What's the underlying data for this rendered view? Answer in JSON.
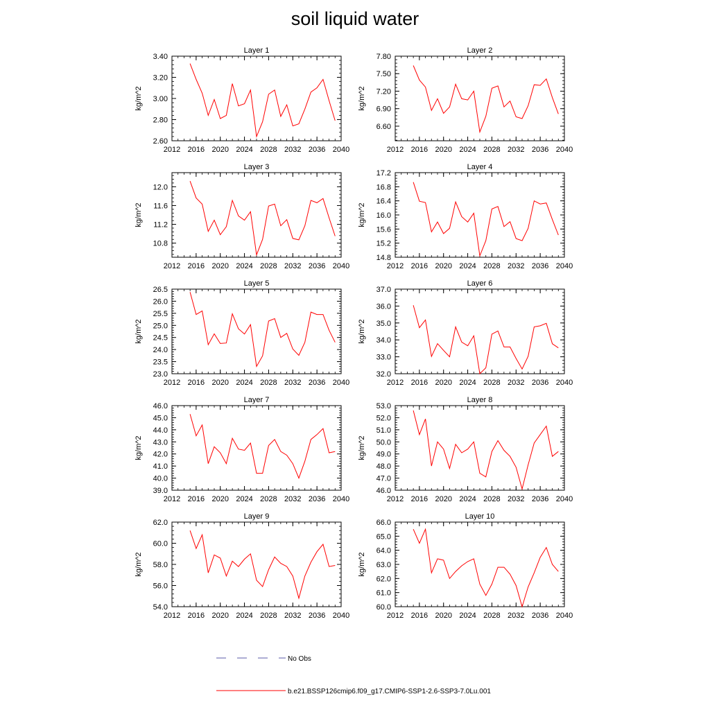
{
  "title": "soil liquid water",
  "legend": {
    "obs_label": "No Obs",
    "model_label": "b.e21.BSSP126cmip6.f09_g17.CMIP6-SSP1-2.6-SSP3-7.0Lu.001",
    "obs_color": "#5a5aaa",
    "model_color": "#ff0000"
  },
  "chart_data": [
    {
      "type": "line",
      "title": "Layer 1",
      "ylabel": "kg/m^2",
      "xlim": [
        2012,
        2040
      ],
      "xticks": [
        "2012",
        "2016",
        "2020",
        "2024",
        "2028",
        "2032",
        "2036",
        "2040"
      ],
      "ylim": [
        2.6,
        3.4
      ],
      "yticks": [
        "2.60",
        "2.80",
        "3.00",
        "3.20",
        "3.40"
      ],
      "yminor": 0.04,
      "x": [
        2015,
        2016,
        2017,
        2018,
        2019,
        2020,
        2021,
        2022,
        2023,
        2024,
        2025,
        2026,
        2027,
        2028,
        2029,
        2030,
        2031,
        2032,
        2033,
        2034,
        2035,
        2036,
        2037,
        2038,
        2039
      ],
      "series": [
        {
          "name": "b.e21.BSSP126cmip6.f09_g17.CMIP6-SSP1-2.6-SSP3-7.0Lu.001",
          "values": [
            3.33,
            3.18,
            3.05,
            2.84,
            2.99,
            2.81,
            2.84,
            3.14,
            2.93,
            2.95,
            3.08,
            2.64,
            2.78,
            3.04,
            3.08,
            2.83,
            2.94,
            2.74,
            2.76,
            2.9,
            3.06,
            3.1,
            3.18,
            2.98,
            2.79
          ]
        }
      ]
    },
    {
      "type": "line",
      "title": "Layer 2",
      "ylabel": "kg/m^2",
      "xlim": [
        2012,
        2040
      ],
      "xticks": [
        "2012",
        "2016",
        "2020",
        "2024",
        "2028",
        "2032",
        "2036",
        "2040"
      ],
      "ylim": [
        6.35,
        7.8
      ],
      "yticks": [
        "6.60",
        "6.90",
        "7.20",
        "7.50",
        "7.80"
      ],
      "yminor": 0.06,
      "x": [
        2015,
        2016,
        2017,
        2018,
        2019,
        2020,
        2021,
        2022,
        2023,
        2024,
        2025,
        2026,
        2027,
        2028,
        2029,
        2030,
        2031,
        2032,
        2033,
        2034,
        2035,
        2036,
        2037,
        2038,
        2039
      ],
      "series": [
        {
          "name": "b.e21.BSSP126cmip6.f09_g17.CMIP6-SSP1-2.6-SSP3-7.0Lu.001",
          "values": [
            7.64,
            7.39,
            7.27,
            6.87,
            7.07,
            6.82,
            6.93,
            7.32,
            7.07,
            7.05,
            7.2,
            6.5,
            6.77,
            7.25,
            7.29,
            6.93,
            7.03,
            6.76,
            6.73,
            6.95,
            7.31,
            7.3,
            7.41,
            7.09,
            6.81
          ]
        }
      ]
    },
    {
      "type": "line",
      "title": "Layer 3",
      "ylabel": "kg/m^2",
      "xlim": [
        2012,
        2040
      ],
      "xticks": [
        "2012",
        "2016",
        "2020",
        "2024",
        "2028",
        "2032",
        "2036",
        "2040"
      ],
      "ylim": [
        10.5,
        12.3
      ],
      "yticks": [
        "10.8",
        "11.2",
        "11.6",
        "12.0"
      ],
      "yminor": 0.08,
      "x": [
        2015,
        2016,
        2017,
        2018,
        2019,
        2020,
        2021,
        2022,
        2023,
        2024,
        2025,
        2026,
        2027,
        2028,
        2029,
        2030,
        2031,
        2032,
        2033,
        2034,
        2035,
        2036,
        2037,
        2038,
        2039
      ],
      "series": [
        {
          "name": "b.e21.BSSP126cmip6.f09_g17.CMIP6-SSP1-2.6-SSP3-7.0Lu.001",
          "values": [
            12.12,
            11.76,
            11.63,
            11.05,
            11.29,
            10.98,
            11.15,
            11.71,
            11.38,
            11.29,
            11.47,
            10.55,
            10.88,
            11.59,
            11.63,
            11.17,
            11.3,
            10.9,
            10.87,
            11.17,
            11.71,
            11.66,
            11.75,
            11.34,
            10.95
          ]
        }
      ]
    },
    {
      "type": "line",
      "title": "Layer 4",
      "ylabel": "kg/m^2",
      "xlim": [
        2012,
        2040
      ],
      "xticks": [
        "2012",
        "2016",
        "2020",
        "2024",
        "2028",
        "2032",
        "2036",
        "2040"
      ],
      "ylim": [
        14.8,
        17.2
      ],
      "yticks": [
        "14.8",
        "15.2",
        "15.6",
        "16.0",
        "16.4",
        "16.8",
        "17.2"
      ],
      "yminor": 0.08,
      "x": [
        2015,
        2016,
        2017,
        2018,
        2019,
        2020,
        2021,
        2022,
        2023,
        2024,
        2025,
        2026,
        2027,
        2028,
        2029,
        2030,
        2031,
        2032,
        2033,
        2034,
        2035,
        2036,
        2037,
        2038,
        2039
      ],
      "series": [
        {
          "name": "b.e21.BSSP126cmip6.f09_g17.CMIP6-SSP1-2.6-SSP3-7.0Lu.001",
          "values": [
            16.93,
            16.39,
            16.35,
            15.52,
            15.8,
            15.47,
            15.62,
            16.37,
            15.95,
            15.8,
            16.05,
            14.84,
            15.27,
            16.17,
            16.24,
            15.67,
            15.81,
            15.33,
            15.27,
            15.62,
            16.4,
            16.31,
            16.34,
            15.87,
            15.43
          ]
        }
      ]
    },
    {
      "type": "line",
      "title": "Layer 5",
      "ylabel": "kg/m^2",
      "xlim": [
        2012,
        2040
      ],
      "xticks": [
        "2012",
        "2016",
        "2020",
        "2024",
        "2028",
        "2032",
        "2036",
        "2040"
      ],
      "ylim": [
        23.0,
        26.5
      ],
      "yticks": [
        "23.0",
        "23.5",
        "24.0",
        "24.5",
        "25.0",
        "25.5",
        "26.0",
        "26.5"
      ],
      "yminor": 0.1,
      "x": [
        2015,
        2016,
        2017,
        2018,
        2019,
        2020,
        2021,
        2022,
        2023,
        2024,
        2025,
        2026,
        2027,
        2028,
        2029,
        2030,
        2031,
        2032,
        2033,
        2034,
        2035,
        2036,
        2037,
        2038,
        2039
      ],
      "series": [
        {
          "name": "b.e21.BSSP126cmip6.f09_g17.CMIP6-SSP1-2.6-SSP3-7.0Lu.001",
          "values": [
            26.38,
            25.45,
            25.6,
            24.2,
            24.65,
            24.25,
            24.27,
            25.48,
            24.86,
            24.64,
            25.03,
            23.3,
            23.74,
            25.18,
            25.28,
            24.5,
            24.67,
            24.02,
            23.76,
            24.3,
            25.55,
            25.45,
            25.45,
            24.8,
            24.3
          ]
        }
      ]
    },
    {
      "type": "line",
      "title": "Layer 6",
      "ylabel": "kg/m^2",
      "xlim": [
        2012,
        2040
      ],
      "xticks": [
        "2012",
        "2016",
        "2020",
        "2024",
        "2028",
        "2032",
        "2036",
        "2040"
      ],
      "ylim": [
        32.0,
        37.0
      ],
      "yticks": [
        "32.0",
        "33.0",
        "34.0",
        "35.0",
        "36.0",
        "37.0"
      ],
      "yminor": 0.2,
      "x": [
        2015,
        2016,
        2017,
        2018,
        2019,
        2020,
        2021,
        2022,
        2023,
        2024,
        2025,
        2026,
        2027,
        2028,
        2029,
        2030,
        2031,
        2032,
        2033,
        2034,
        2035,
        2036,
        2037,
        2038,
        2039
      ],
      "series": [
        {
          "name": "b.e21.BSSP126cmip6.f09_g17.CMIP6-SSP1-2.6-SSP3-7.0Lu.001",
          "values": [
            36.05,
            34.72,
            35.18,
            33.02,
            33.78,
            33.38,
            33.0,
            34.77,
            33.87,
            33.65,
            34.24,
            32.0,
            32.35,
            34.34,
            34.53,
            33.58,
            33.58,
            32.9,
            32.28,
            33.03,
            34.77,
            34.83,
            34.98,
            33.77,
            33.53
          ]
        }
      ]
    },
    {
      "type": "line",
      "title": "Layer 7",
      "ylabel": "kg/m^2",
      "xlim": [
        2012,
        2040
      ],
      "xticks": [
        "2012",
        "2016",
        "2020",
        "2024",
        "2028",
        "2032",
        "2036",
        "2040"
      ],
      "ylim": [
        39.0,
        46.0
      ],
      "yticks": [
        "39.0",
        "40.0",
        "41.0",
        "42.0",
        "43.0",
        "44.0",
        "45.0",
        "46.0"
      ],
      "yminor": 0.2,
      "x": [
        2015,
        2016,
        2017,
        2018,
        2019,
        2020,
        2021,
        2022,
        2023,
        2024,
        2025,
        2026,
        2027,
        2028,
        2029,
        2030,
        2031,
        2032,
        2033,
        2034,
        2035,
        2036,
        2037,
        2038,
        2039
      ],
      "series": [
        {
          "name": "b.e21.BSSP126cmip6.f09_g17.CMIP6-SSP1-2.6-SSP3-7.0Lu.001",
          "values": [
            45.3,
            43.5,
            44.4,
            41.2,
            42.6,
            42.1,
            41.2,
            43.3,
            42.4,
            42.3,
            42.9,
            40.4,
            40.4,
            42.7,
            43.2,
            42.2,
            41.9,
            41.2,
            40.0,
            41.4,
            43.2,
            43.6,
            44.1,
            42.1,
            42.2
          ]
        }
      ]
    },
    {
      "type": "line",
      "title": "Layer 8",
      "ylabel": "kg/m^2",
      "xlim": [
        2012,
        2040
      ],
      "xticks": [
        "2012",
        "2016",
        "2020",
        "2024",
        "2028",
        "2032",
        "2036",
        "2040"
      ],
      "ylim": [
        46.0,
        53.0
      ],
      "yticks": [
        "46.0",
        "47.0",
        "48.0",
        "49.0",
        "50.0",
        "51.0",
        "52.0",
        "53.0"
      ],
      "yminor": 0.2,
      "x": [
        2015,
        2016,
        2017,
        2018,
        2019,
        2020,
        2021,
        2022,
        2023,
        2024,
        2025,
        2026,
        2027,
        2028,
        2029,
        2030,
        2031,
        2032,
        2033,
        2034,
        2035,
        2036,
        2037,
        2038,
        2039
      ],
      "series": [
        {
          "name": "b.e21.BSSP126cmip6.f09_g17.CMIP6-SSP1-2.6-SSP3-7.0Lu.001",
          "values": [
            52.6,
            50.6,
            51.9,
            48.0,
            50.0,
            49.4,
            47.8,
            49.8,
            49.1,
            49.4,
            50.0,
            47.4,
            47.1,
            49.2,
            50.1,
            49.3,
            48.8,
            47.9,
            46.1,
            48.1,
            49.9,
            50.6,
            51.3,
            48.8,
            49.2
          ]
        }
      ]
    },
    {
      "type": "line",
      "title": "Layer 9",
      "ylabel": "kg/m^2",
      "xlim": [
        2012,
        2040
      ],
      "xticks": [
        "2012",
        "2016",
        "2020",
        "2024",
        "2028",
        "2032",
        "2036",
        "2040"
      ],
      "ylim": [
        54.0,
        62.0
      ],
      "yticks": [
        "54.0",
        "56.0",
        "58.0",
        "60.0",
        "62.0"
      ],
      "yminor": 0.4,
      "x": [
        2015,
        2016,
        2017,
        2018,
        2019,
        2020,
        2021,
        2022,
        2023,
        2024,
        2025,
        2026,
        2027,
        2028,
        2029,
        2030,
        2031,
        2032,
        2033,
        2034,
        2035,
        2036,
        2037,
        2038,
        2039
      ],
      "series": [
        {
          "name": "b.e21.BSSP126cmip6.f09_g17.CMIP6-SSP1-2.6-SSP3-7.0Lu.001",
          "values": [
            61.2,
            59.5,
            60.8,
            57.2,
            58.9,
            58.6,
            56.9,
            58.3,
            57.8,
            58.5,
            59.0,
            56.5,
            55.9,
            57.5,
            58.7,
            58.1,
            57.8,
            56.9,
            54.8,
            56.9,
            58.2,
            59.2,
            59.9,
            57.8,
            57.9
          ]
        }
      ]
    },
    {
      "type": "line",
      "title": "Layer 10",
      "ylabel": "kg/m^2",
      "xlim": [
        2012,
        2040
      ],
      "xticks": [
        "2012",
        "2016",
        "2020",
        "2024",
        "2028",
        "2032",
        "2036",
        "2040"
      ],
      "ylim": [
        60.0,
        66.0
      ],
      "yticks": [
        "60.0",
        "61.0",
        "62.0",
        "63.0",
        "64.0",
        "65.0",
        "66.0"
      ],
      "yminor": 0.2,
      "x": [
        2015,
        2016,
        2017,
        2018,
        2019,
        2020,
        2021,
        2022,
        2023,
        2024,
        2025,
        2026,
        2027,
        2028,
        2029,
        2030,
        2031,
        2032,
        2033,
        2034,
        2035,
        2036,
        2037,
        2038,
        2039
      ],
      "series": [
        {
          "name": "b.e21.BSSP126cmip6.f09_g17.CMIP6-SSP1-2.6-SSP3-7.0Lu.001",
          "values": [
            65.5,
            64.5,
            65.5,
            62.4,
            63.4,
            63.3,
            62.0,
            62.5,
            62.9,
            63.2,
            63.4,
            61.6,
            60.8,
            61.6,
            62.8,
            62.8,
            62.3,
            61.5,
            60.0,
            61.4,
            62.4,
            63.5,
            64.2,
            63.0,
            62.5
          ]
        }
      ]
    }
  ]
}
